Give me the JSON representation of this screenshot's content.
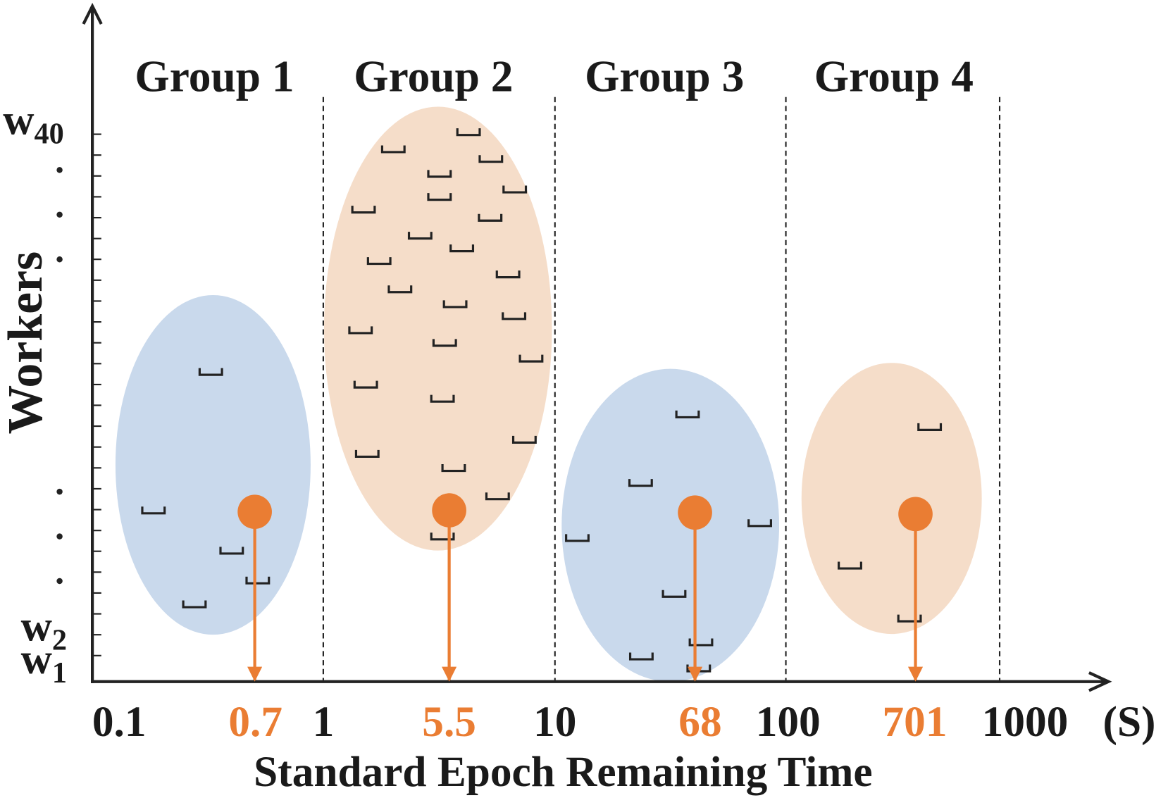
{
  "groups": [
    "Group 1",
    "Group 2",
    "Group 3",
    "Group 4"
  ],
  "y_axis": {
    "title": "Workers",
    "labels": [
      {
        "base": "w",
        "sub": "40"
      },
      {
        "base": "w",
        "sub": "2"
      },
      {
        "base": "w",
        "sub": "1"
      }
    ]
  },
  "x_axis": {
    "title": "Standard Epoch Remaining Time",
    "ticks": [
      "0.1",
      "1",
      "10",
      "100",
      "1000"
    ],
    "unit": "(S)"
  },
  "group_times": [
    "0.7",
    "5.5",
    "68",
    "701"
  ]
}
